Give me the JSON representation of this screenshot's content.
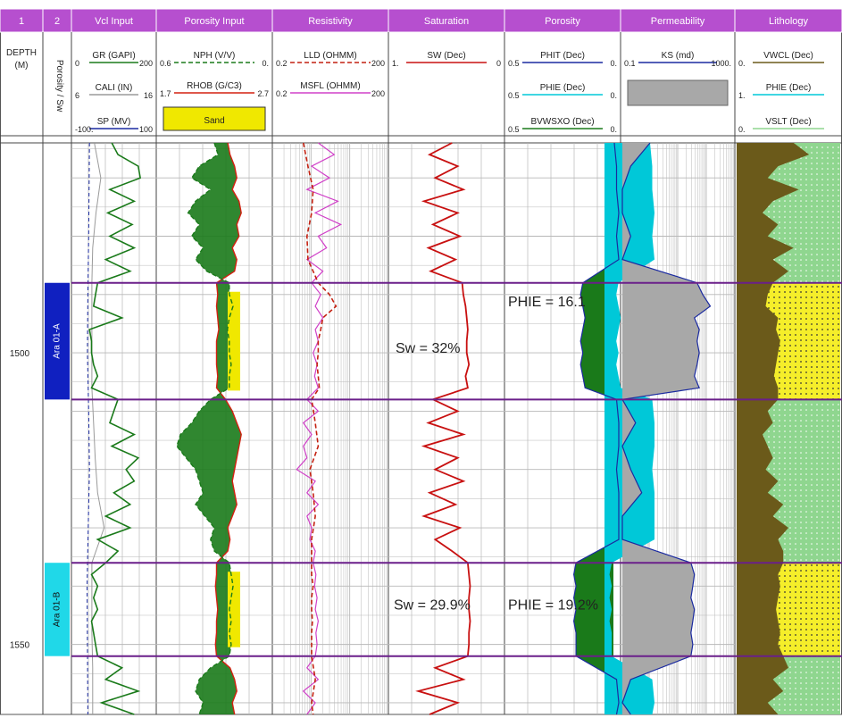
{
  "colors": {
    "header_bg": "#b64fcf",
    "header_text": "#ffffff",
    "grid": "#b8b8b8",
    "zone_line": "#6a1f8a",
    "gr": "#1a7a1a",
    "cali": "#9a9a9a",
    "sp": "#1a2aa0",
    "nphi": "#1a7a1a",
    "rhob": "#d42010",
    "sand": "#f0e800",
    "lld": "#c42010",
    "msfl": "#d040c8",
    "sw": "#c81010",
    "phit": "#1a2aa0",
    "phie_fill": "#00c8d8",
    "bvw": "#1a7a1a",
    "perm_fill": "#a8a8a8",
    "perm_line": "#1a2aa0",
    "vwcl": "#6b5a1a",
    "lith_sand": "#f5ee2a",
    "lith_shale": "#8fd68f",
    "zone_a": "#1020c0",
    "zone_b": "#20d8e8"
  },
  "tracks": [
    {
      "id": "1",
      "title": "1"
    },
    {
      "id": "2",
      "title": "2"
    },
    {
      "id": "vcl",
      "title": "Vcl Input"
    },
    {
      "id": "por",
      "title": "Porosity Input"
    },
    {
      "id": "res",
      "title": "Resistivity"
    },
    {
      "id": "sat",
      "title": "Saturation"
    },
    {
      "id": "poro",
      "title": "Porosity"
    },
    {
      "id": "perm",
      "title": "Permeability"
    },
    {
      "id": "lith",
      "title": "Lithology"
    }
  ],
  "depth_header": {
    "label": "DEPTH",
    "unit": "(M)"
  },
  "track2_header": "Porosity / Sw",
  "curves": {
    "gr": {
      "label": "GR (GAPI)",
      "min": "0",
      "max": "200"
    },
    "cali": {
      "label": "CALI (IN)",
      "min": "6",
      "max": "16"
    },
    "sp": {
      "label": "SP (MV)",
      "min": "-100.",
      "max": "100"
    },
    "nphi": {
      "label": "NPH (V/V)",
      "min": "0.6",
      "max": "0."
    },
    "rhob": {
      "label": "RHOB (G/C3)",
      "min": "1.7",
      "max": "2.7"
    },
    "sand": {
      "label": "Sand"
    },
    "lld": {
      "label": "LLD (OHMM)",
      "min": "0.2",
      "max": "200"
    },
    "msfl": {
      "label": "MSFL (OHMM)",
      "min": "0.2",
      "max": "200"
    },
    "sw": {
      "label": "SW (Dec)",
      "min": "1.",
      "max": "0"
    },
    "phit": {
      "label": "PHIT (Dec)",
      "min": "0.5",
      "max": "0."
    },
    "phie": {
      "label": "PHIE (Dec)",
      "min": "0.5",
      "max": "0."
    },
    "bvw": {
      "label": "BVWSXO (Dec)",
      "min": "0.5",
      "max": "0."
    },
    "ks": {
      "label": "KS (md)",
      "min": "0.1",
      "max": "1000."
    },
    "vwcl": {
      "label": "VWCL (Dec)",
      "min": "0.",
      "max": ""
    },
    "phie2": {
      "label": "PHIE (Dec)",
      "min": "1.",
      "max": ""
    },
    "vslt": {
      "label": "VSLT (Dec)",
      "min": "0.",
      "max": ""
    }
  },
  "zones": [
    {
      "name": "Ara 01-A",
      "top": 1488,
      "bottom": 1508
    },
    {
      "name": "Ara 01-B",
      "top": 1536,
      "bottom": 1552
    }
  ],
  "annotations": [
    {
      "text": "PHIE = 16.1",
      "depth": 1492
    },
    {
      "text": "Sw = 32%",
      "depth": 1500
    },
    {
      "text": "Sw = 29.9%",
      "depth": 1544
    },
    {
      "text": "PHIE = 19.2%",
      "depth": 1544
    }
  ],
  "chart_data": {
    "type": "line",
    "depth_axis": {
      "label": "DEPTH",
      "unit": "M",
      "range": [
        1464,
        1562
      ],
      "tick_labels": [
        1500,
        1550
      ]
    },
    "series": [
      {
        "name": "GR (GAPI)",
        "track": "Vcl Input",
        "scale": [
          0,
          200
        ],
        "x": [
          1464,
          1466,
          1468,
          1470,
          1472,
          1474,
          1476,
          1478,
          1480,
          1482,
          1484,
          1486,
          1488,
          1490,
          1492,
          1494,
          1496,
          1498,
          1500,
          1502,
          1504,
          1506,
          1508,
          1510,
          1512,
          1514,
          1516,
          1518,
          1520,
          1522,
          1524,
          1526,
          1528,
          1530,
          1532,
          1534,
          1536,
          1538,
          1540,
          1542,
          1544,
          1546,
          1548,
          1550,
          1552,
          1554,
          1556,
          1558,
          1560,
          1562
        ],
        "y": [
          95,
          110,
          160,
          165,
          90,
          150,
          85,
          145,
          90,
          150,
          80,
          140,
          60,
          55,
          50,
          120,
          40,
          45,
          45,
          50,
          60,
          45,
          110,
          100,
          90,
          150,
          95,
          160,
          130,
          150,
          100,
          140,
          80,
          140,
          60,
          110,
          80,
          45,
          60,
          50,
          60,
          45,
          50,
          55,
          60,
          120,
          80,
          160,
          70,
          150
        ]
      },
      {
        "name": "CALI (IN)",
        "track": "Vcl Input",
        "scale": [
          6,
          16
        ],
        "x": [
          1464,
          1470,
          1476,
          1482,
          1488,
          1494,
          1500,
          1506,
          1512,
          1518,
          1524,
          1530,
          1536,
          1542,
          1548,
          1554,
          1562
        ],
        "y": [
          8.6,
          9.4,
          8.8,
          8.4,
          8.3,
          8.3,
          8.3,
          8.3,
          8.5,
          8.7,
          9.0,
          9.8,
          8.3,
          8.3,
          8.3,
          8.4,
          8.4
        ]
      },
      {
        "name": "SP (MV)",
        "track": "Vcl Input",
        "scale": [
          -100,
          100
        ],
        "x": [
          1464,
          1480,
          1490,
          1500,
          1510,
          1520,
          1530,
          1540,
          1550,
          1562
        ],
        "y": [
          -60,
          -62,
          -64,
          -65,
          -62,
          -60,
          -63,
          -66,
          -65,
          -64
        ]
      },
      {
        "name": "NPH (V/V)",
        "track": "Porosity Input",
        "scale": [
          0.6,
          0
        ],
        "x": [
          1464,
          1466,
          1468,
          1470,
          1472,
          1474,
          1476,
          1478,
          1480,
          1482,
          1484,
          1486,
          1488,
          1490,
          1492,
          1494,
          1496,
          1498,
          1500,
          1502,
          1504,
          1506,
          1508,
          1510,
          1512,
          1514,
          1516,
          1518,
          1520,
          1522,
          1524,
          1526,
          1528,
          1530,
          1532,
          1534,
          1536,
          1538,
          1540,
          1542,
          1544,
          1546,
          1548,
          1550,
          1552,
          1554,
          1556,
          1558,
          1560,
          1562
        ],
        "y": [
          0.3,
          0.28,
          0.38,
          0.42,
          0.32,
          0.4,
          0.44,
          0.38,
          0.42,
          0.36,
          0.4,
          0.34,
          0.22,
          0.22,
          0.2,
          0.22,
          0.23,
          0.22,
          0.22,
          0.21,
          0.22,
          0.22,
          0.32,
          0.38,
          0.42,
          0.48,
          0.5,
          0.45,
          0.4,
          0.38,
          0.36,
          0.4,
          0.35,
          0.3,
          0.32,
          0.3,
          0.22,
          0.21,
          0.2,
          0.21,
          0.22,
          0.21,
          0.22,
          0.21,
          0.22,
          0.32,
          0.38,
          0.4,
          0.36,
          0.38
        ]
      },
      {
        "name": "RHOB (G/C3)",
        "track": "Porosity Input",
        "scale": [
          1.7,
          2.7
        ],
        "x": [
          1464,
          1466,
          1468,
          1470,
          1472,
          1474,
          1476,
          1478,
          1480,
          1482,
          1484,
          1486,
          1488,
          1490,
          1492,
          1494,
          1496,
          1498,
          1500,
          1502,
          1504,
          1506,
          1508,
          1510,
          1512,
          1514,
          1516,
          1518,
          1520,
          1522,
          1524,
          1526,
          1528,
          1530,
          1532,
          1534,
          1536,
          1538,
          1540,
          1542,
          1544,
          1546,
          1548,
          1550,
          1552,
          1554,
          1556,
          1558,
          1560,
          1562
        ],
        "y": [
          2.32,
          2.34,
          2.38,
          2.4,
          2.36,
          2.42,
          2.44,
          2.4,
          2.42,
          2.36,
          2.4,
          2.38,
          2.22,
          2.23,
          2.22,
          2.23,
          2.24,
          2.22,
          2.22,
          2.22,
          2.23,
          2.22,
          2.3,
          2.36,
          2.4,
          2.44,
          2.42,
          2.4,
          2.38,
          2.36,
          2.38,
          2.4,
          2.36,
          2.32,
          2.34,
          2.32,
          2.22,
          2.22,
          2.21,
          2.22,
          2.23,
          2.22,
          2.22,
          2.21,
          2.22,
          2.34,
          2.38,
          2.4,
          2.36,
          2.38
        ]
      },
      {
        "name": "LLD (OHMM)",
        "track": "Resistivity",
        "scale": [
          0.2,
          200
        ],
        "log": true,
        "x": [
          1464,
          1468,
          1472,
          1476,
          1480,
          1484,
          1488,
          1490,
          1492,
          1494,
          1496,
          1498,
          1500,
          1502,
          1504,
          1506,
          1508,
          1512,
          1516,
          1520,
          1524,
          1528,
          1532,
          1536,
          1538,
          1540,
          1542,
          1544,
          1546,
          1548,
          1550,
          1552,
          1556,
          1560,
          1562
        ],
        "y": [
          1.2,
          1.6,
          2.2,
          2.0,
          1.5,
          1.6,
          3.0,
          6.0,
          9.0,
          4.0,
          3.5,
          3.0,
          3.0,
          2.8,
          3.0,
          3.2,
          2.0,
          2.5,
          3.0,
          1.8,
          2.2,
          2.5,
          2.0,
          2.0,
          2.0,
          2.2,
          2.0,
          2.0,
          2.1,
          2.0,
          2.0,
          2.0,
          2.5,
          2.0,
          2.2
        ]
      },
      {
        "name": "MSFL (OHMM)",
        "track": "Resistivity",
        "scale": [
          0.2,
          200
        ],
        "log": true,
        "x": [
          1464,
          1466,
          1468,
          1470,
          1472,
          1474,
          1476,
          1478,
          1480,
          1482,
          1484,
          1486,
          1488,
          1490,
          1492,
          1494,
          1496,
          1498,
          1500,
          1502,
          1504,
          1506,
          1508,
          1510,
          1512,
          1514,
          1516,
          1518,
          1520,
          1522,
          1524,
          1526,
          1528,
          1530,
          1532,
          1534,
          1536,
          1538,
          1540,
          1542,
          1544,
          1546,
          1548,
          1550,
          1552,
          1554,
          1556,
          1558,
          1560,
          1562
        ],
        "y": [
          3.0,
          8.0,
          2.0,
          6.0,
          1.5,
          10.0,
          2.5,
          12.0,
          3.0,
          5.0,
          1.5,
          4.0,
          2.0,
          3.5,
          2.5,
          4.0,
          2.5,
          3.0,
          2.2,
          2.8,
          2.4,
          3.0,
          1.5,
          3.0,
          1.2,
          2.0,
          1.2,
          1.5,
          0.8,
          2.5,
          1.5,
          3.0,
          1.5,
          2.0,
          1.8,
          2.5,
          2.2,
          2.6,
          2.4,
          2.8,
          2.5,
          3.0,
          2.6,
          2.8,
          2.5,
          1.5,
          3.0,
          1.2,
          2.5,
          1.5
        ]
      },
      {
        "name": "SW (Dec)",
        "track": "Saturation",
        "scale": [
          1,
          0
        ],
        "x": [
          1464,
          1466,
          1468,
          1470,
          1472,
          1474,
          1476,
          1478,
          1480,
          1482,
          1484,
          1486,
          1488,
          1490,
          1492,
          1494,
          1496,
          1498,
          1500,
          1502,
          1504,
          1506,
          1508,
          1510,
          1512,
          1514,
          1516,
          1518,
          1520,
          1522,
          1524,
          1526,
          1528,
          1530,
          1532,
          1534,
          1536,
          1538,
          1540,
          1542,
          1544,
          1546,
          1548,
          1550,
          1552,
          1554,
          1556,
          1558,
          1560,
          1562
        ],
        "y": [
          0.45,
          0.65,
          0.4,
          0.6,
          0.35,
          0.7,
          0.4,
          0.62,
          0.38,
          0.66,
          0.42,
          0.64,
          0.36,
          0.35,
          0.33,
          0.32,
          0.31,
          0.32,
          0.32,
          0.3,
          0.33,
          0.31,
          0.62,
          0.4,
          0.66,
          0.35,
          0.7,
          0.4,
          0.6,
          0.35,
          0.65,
          0.42,
          0.7,
          0.38,
          0.6,
          0.45,
          0.31,
          0.3,
          0.29,
          0.3,
          0.3,
          0.29,
          0.3,
          0.3,
          0.31,
          0.6,
          0.35,
          0.75,
          0.4,
          0.65
        ]
      },
      {
        "name": "PHIE (Dec)",
        "track": "Porosity",
        "scale": [
          0.5,
          0
        ],
        "x": [
          1464,
          1468,
          1472,
          1476,
          1480,
          1484,
          1488,
          1490,
          1492,
          1494,
          1496,
          1498,
          1500,
          1502,
          1504,
          1506,
          1508,
          1512,
          1516,
          1520,
          1524,
          1528,
          1532,
          1536,
          1538,
          1540,
          1542,
          1544,
          1546,
          1548,
          1550,
          1552,
          1556,
          1560,
          1562
        ],
        "y": [
          0.02,
          0.01,
          0.01,
          0.0,
          0.01,
          0.0,
          0.16,
          0.17,
          0.16,
          0.15,
          0.16,
          0.17,
          0.16,
          0.17,
          0.16,
          0.15,
          0.01,
          0.0,
          0.0,
          0.01,
          0.0,
          0.0,
          0.0,
          0.19,
          0.2,
          0.19,
          0.2,
          0.19,
          0.2,
          0.19,
          0.19,
          0.19,
          0.01,
          0.0,
          0.01
        ]
      },
      {
        "name": "KS (md)",
        "track": "Permeability",
        "scale": [
          0.1,
          1000
        ],
        "log": true,
        "x": [
          1464,
          1468,
          1472,
          1476,
          1480,
          1484,
          1488,
          1490,
          1492,
          1494,
          1496,
          1498,
          1500,
          1502,
          1504,
          1506,
          1508,
          1512,
          1516,
          1520,
          1524,
          1528,
          1532,
          1536,
          1538,
          1540,
          1542,
          1544,
          1546,
          1548,
          1550,
          1552,
          1556,
          1560,
          1562
        ],
        "y": [
          1.0,
          0.2,
          0.1,
          0.1,
          0.2,
          0.1,
          50,
          80,
          150,
          40,
          60,
          50,
          60,
          50,
          40,
          60,
          0.1,
          0.3,
          0.1,
          0.2,
          0.5,
          0.1,
          0.1,
          30,
          40,
          35,
          30,
          40,
          35,
          30,
          35,
          30,
          0.2,
          0.1,
          0.2
        ]
      },
      {
        "name": "VWCL (Dec)",
        "track": "Lithology",
        "scale": [
          0,
          1
        ],
        "x": [
          1464,
          1466,
          1468,
          1470,
          1472,
          1474,
          1476,
          1478,
          1480,
          1482,
          1484,
          1486,
          1488,
          1490,
          1492,
          1494,
          1496,
          1498,
          1500,
          1502,
          1504,
          1506,
          1508,
          1510,
          1512,
          1514,
          1516,
          1518,
          1520,
          1522,
          1524,
          1526,
          1528,
          1530,
          1532,
          1534,
          1536,
          1538,
          1540,
          1542,
          1544,
          1546,
          1548,
          1550,
          1552,
          1554,
          1556,
          1558,
          1560,
          1562
        ],
        "y": [
          0.55,
          0.7,
          0.4,
          0.3,
          0.6,
          0.35,
          0.25,
          0.4,
          0.3,
          0.55,
          0.35,
          0.5,
          0.35,
          0.3,
          0.28,
          0.4,
          0.38,
          0.42,
          0.4,
          0.38,
          0.36,
          0.4,
          0.4,
          0.3,
          0.35,
          0.25,
          0.3,
          0.35,
          0.28,
          0.4,
          0.3,
          0.45,
          0.35,
          0.5,
          0.4,
          0.45,
          0.45,
          0.4,
          0.42,
          0.4,
          0.38,
          0.4,
          0.42,
          0.4,
          0.45,
          0.5,
          0.35,
          0.45,
          0.3,
          0.4
        ]
      }
    ]
  }
}
